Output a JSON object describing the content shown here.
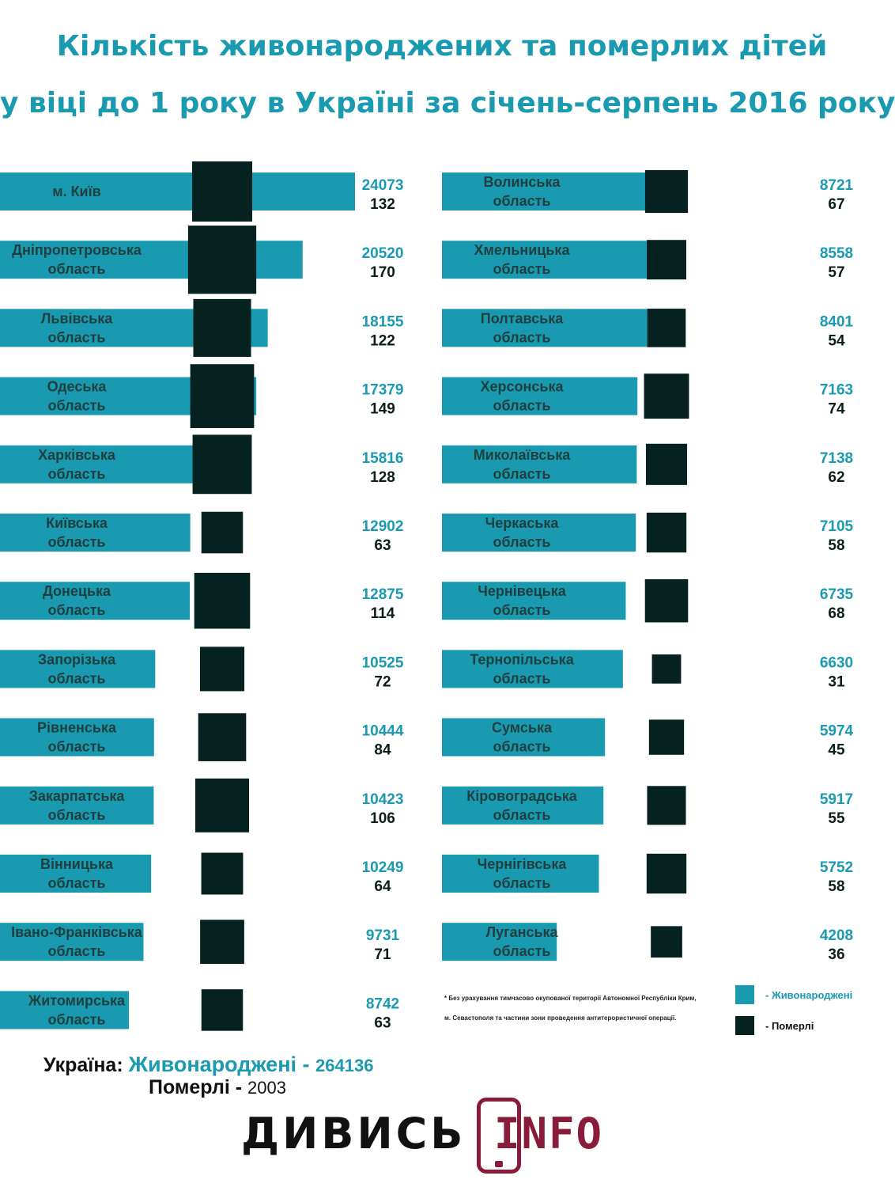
{
  "title": {
    "line1": "Кількість живонароджених та померлих дітей",
    "line2": "у віці до 1 року в Україні за січень-серпень 2016 року"
  },
  "colors": {
    "born": "#1a9ab0",
    "died": "#052220",
    "brand": "#8a1c3b"
  },
  "chart_data": {
    "type": "bar",
    "series": [
      {
        "name": "Живонароджені",
        "values": [
          24073,
          20520,
          18155,
          17379,
          15816,
          12902,
          12875,
          10525,
          10444,
          10423,
          10249,
          9731,
          8742,
          8721,
          8558,
          8401,
          7163,
          7138,
          7105,
          6735,
          6630,
          5974,
          5917,
          5752,
          4208
        ]
      },
      {
        "name": "Померлі",
        "values": [
          132,
          170,
          122,
          149,
          128,
          63,
          114,
          72,
          84,
          106,
          64,
          71,
          63,
          67,
          57,
          54,
          74,
          62,
          58,
          68,
          31,
          45,
          55,
          58,
          36
        ]
      }
    ],
    "regions": [
      {
        "name_lines": [
          "м. Київ"
        ],
        "born": 24073,
        "died": 132
      },
      {
        "name_lines": [
          "Дніпропетровська",
          "область"
        ],
        "born": 20520,
        "died": 170
      },
      {
        "name_lines": [
          "Львівська",
          "область"
        ],
        "born": 18155,
        "died": 122
      },
      {
        "name_lines": [
          "Одеська",
          "область"
        ],
        "born": 17379,
        "died": 149
      },
      {
        "name_lines": [
          "Харківська",
          "область"
        ],
        "born": 15816,
        "died": 128
      },
      {
        "name_lines": [
          "Київська",
          "область"
        ],
        "born": 12902,
        "died": 63
      },
      {
        "name_lines": [
          "Донецька",
          "область"
        ],
        "born": 12875,
        "died": 114
      },
      {
        "name_lines": [
          "Запорізька",
          "область"
        ],
        "born": 10525,
        "died": 72
      },
      {
        "name_lines": [
          "Рівненська",
          "область"
        ],
        "born": 10444,
        "died": 84
      },
      {
        "name_lines": [
          "Закарпатська",
          "область"
        ],
        "born": 10423,
        "died": 106
      },
      {
        "name_lines": [
          "Вінницька",
          "область"
        ],
        "born": 10249,
        "died": 64
      },
      {
        "name_lines": [
          "Івано-Франківська",
          "область"
        ],
        "born": 9731,
        "died": 71
      },
      {
        "name_lines": [
          "Житомирська",
          "область"
        ],
        "born": 8742,
        "died": 63
      },
      {
        "name_lines": [
          "Волинська",
          "область"
        ],
        "born": 8721,
        "died": 67
      },
      {
        "name_lines": [
          "Хмельницька",
          "область"
        ],
        "born": 8558,
        "died": 57
      },
      {
        "name_lines": [
          "Полтавська",
          "область"
        ],
        "born": 8401,
        "died": 54
      },
      {
        "name_lines": [
          "Херсонська",
          "область"
        ],
        "born": 7163,
        "died": 74
      },
      {
        "name_lines": [
          "Миколаївська",
          "область"
        ],
        "born": 7138,
        "died": 62
      },
      {
        "name_lines": [
          "Черкаська",
          "область"
        ],
        "born": 7105,
        "died": 58
      },
      {
        "name_lines": [
          "Чернівецька",
          "область"
        ],
        "born": 6735,
        "died": 68
      },
      {
        "name_lines": [
          "Тернопільська",
          "область"
        ],
        "born": 6630,
        "died": 31
      },
      {
        "name_lines": [
          "Сумська",
          "область"
        ],
        "born": 5974,
        "died": 45
      },
      {
        "name_lines": [
          "Кіровоградська",
          "область"
        ],
        "born": 5917,
        "died": 55
      },
      {
        "name_lines": [
          "Чернігівська",
          "область"
        ],
        "born": 5752,
        "died": 58
      },
      {
        "name_lines": [
          "Луганська",
          "область"
        ],
        "born": 4208,
        "died": 36
      }
    ]
  },
  "footnote": {
    "line1": "* Без урахування тимчасово окупованої території Автономної Республіки Крим,",
    "line2": "м. Севастополя та частини зони проведення антитерористичної операції."
  },
  "legend": {
    "born": "- Живонароджені",
    "died": "- Померлі"
  },
  "summary": {
    "country": "Україна:",
    "born_label": "Живонароджені - ",
    "born_value": "264136",
    "died_label": "Померлі - ",
    "died_value": "2003"
  },
  "logo": {
    "word": "ДИВИСЬ",
    "info": "INFO"
  }
}
